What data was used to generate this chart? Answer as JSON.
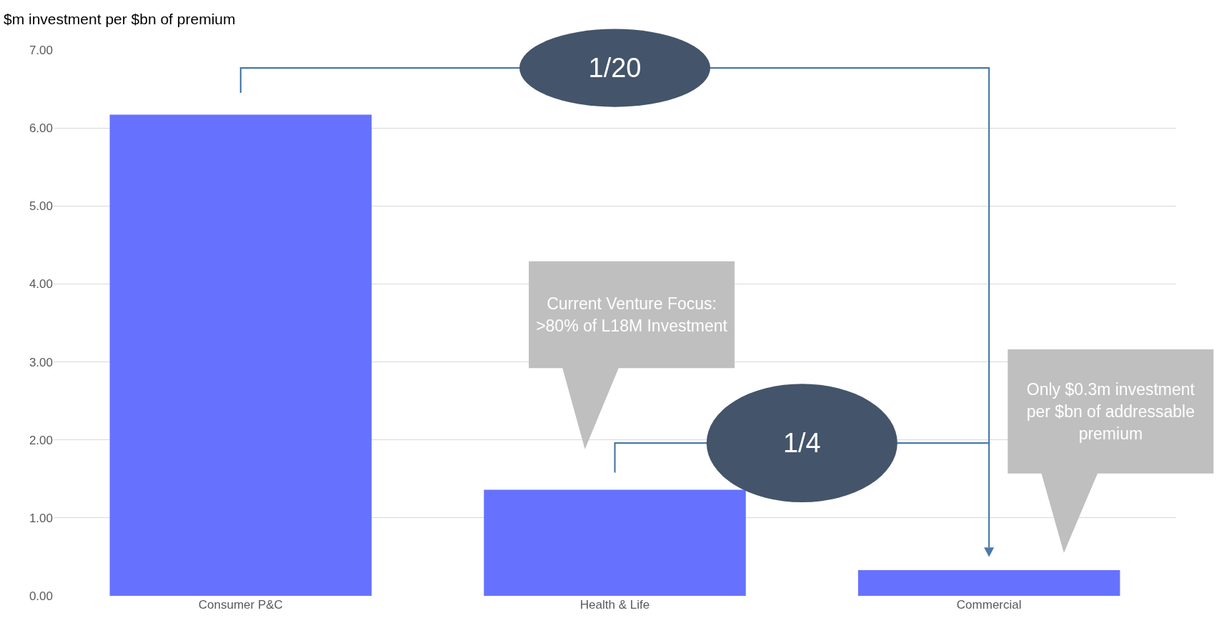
{
  "chart_data": {
    "type": "bar",
    "ylabel": "$m investment per $bn of premium",
    "categories": [
      "Consumer P&C",
      "Health & Life",
      "Commercial"
    ],
    "values": [
      6.17,
      1.36,
      0.33
    ],
    "color": "#6672fe",
    "ylim": [
      0,
      7
    ],
    "yticks": [
      {
        "value": 0,
        "label": "0.00"
      },
      {
        "value": 1,
        "label": "1.00"
      },
      {
        "value": 2,
        "label": "2.00"
      },
      {
        "value": 3,
        "label": "3.00"
      },
      {
        "value": 4,
        "label": "4.00"
      },
      {
        "value": 5,
        "label": "5.00"
      },
      {
        "value": 6,
        "label": "6.00"
      },
      {
        "value": 7,
        "label": "7.00"
      }
    ],
    "grid": "y",
    "legend": false,
    "annotations": [
      "1/20",
      "1/4",
      "Current Venture Focus: >80% of L18M Investment",
      "Only $0.3m investment per $bn of addressable premium"
    ]
  }
}
